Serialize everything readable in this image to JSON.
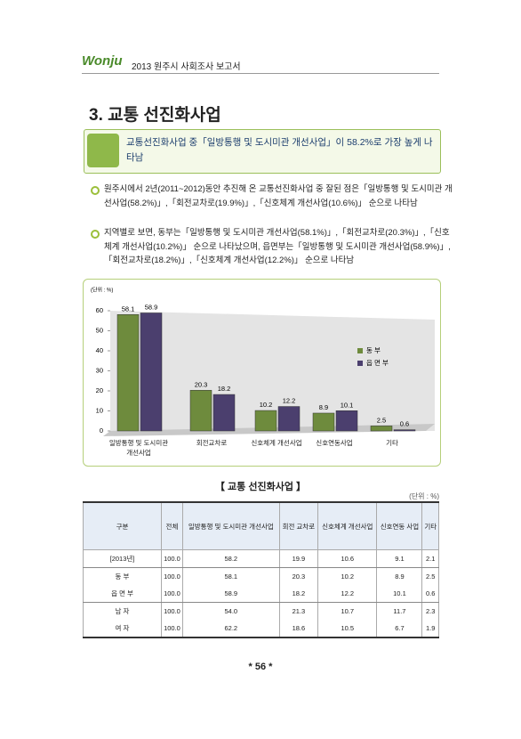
{
  "header": {
    "logo": "Wonju",
    "title": "2013 원주시 사회조사 보고서"
  },
  "section_title": "3. 교통 선진화사업",
  "summary": "교통선진화사업 중「일방통행 및 도시미관 개선사업」이 58.2%로 가장 높게 나타남",
  "bullets": [
    "원주시에서 2년(2011~2012)동안 추진해 온 교통선진화사업 중 잘된 점은「일방통행 및 도시미관 개선사업(58.2%)」,「회전교차로(19.9%)」,「신호체계 개선사업(10.6%)」 순으로 나타남",
    "지역별로 보면, 동부는「일방통행 및 도시미관 개선사업(58.1%)」,「회전교차로(20.3%)」,「신호체계 개선사업(10.2%)」 순으로 나타났으며, 읍면부는「일방통행 및 도시미관 개선사업(58.9%)」,「회전교차로(18.2%)」,「신호체계 개선사업(12.2%)」 순으로 나타남"
  ],
  "chart_data": {
    "type": "bar",
    "unit": "(단위 : %)",
    "categories": [
      "일방통행 및 도시미관 개선사업",
      "회전교차로",
      "신호체계 개선사업",
      "신호연동사업",
      "기타"
    ],
    "series": [
      {
        "name": "동 부",
        "color": "#6e8b3d",
        "values": [
          58.1,
          20.3,
          10.2,
          8.9,
          2.5
        ]
      },
      {
        "name": "읍 면 부",
        "color": "#4b3f6e",
        "values": [
          58.9,
          18.2,
          12.2,
          10.1,
          0.6
        ]
      }
    ],
    "ylim": [
      0,
      60
    ],
    "yticks": [
      0,
      10,
      20,
      30,
      40,
      50,
      60
    ],
    "legend": "right"
  },
  "caption": "【 교통 선진화사업 】",
  "table_unit": "(단위 : %)",
  "table": {
    "header": [
      "구분",
      "전체",
      "일방통행 및 도시미관 개선사업",
      "회전 교차로",
      "신호체계 개선사업",
      "신호연동 사업",
      "기타"
    ],
    "rows": [
      [
        "[2013년]",
        "100.0",
        "58.2",
        "19.9",
        "10.6",
        "9.1",
        "2.1"
      ],
      [
        "동 부",
        "100.0",
        "58.1",
        "20.3",
        "10.2",
        "8.9",
        "2.5"
      ],
      [
        "읍 면 부",
        "100.0",
        "58.9",
        "18.2",
        "12.2",
        "10.1",
        "0.6"
      ],
      [
        "남 자",
        "100.0",
        "54.0",
        "21.3",
        "10.7",
        "11.7",
        "2.3"
      ],
      [
        "여 자",
        "100.0",
        "62.2",
        "18.6",
        "10.5",
        "6.7",
        "1.9"
      ]
    ]
  },
  "page_number": "* 56 *"
}
